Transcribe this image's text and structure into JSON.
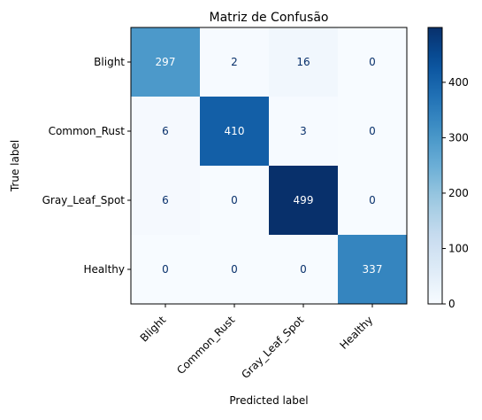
{
  "chart_data": {
    "type": "heatmap",
    "title": "Matriz de Confusão",
    "xlabel": "Predicted label",
    "ylabel": "True label",
    "x_categories": [
      "Blight",
      "Common_Rust",
      "Gray_Leaf_Spot",
      "Healthy"
    ],
    "y_categories": [
      "Blight",
      "Common_Rust",
      "Gray_Leaf_Spot",
      "Healthy"
    ],
    "values": [
      [
        297,
        2,
        16,
        0
      ],
      [
        6,
        410,
        3,
        0
      ],
      [
        6,
        0,
        499,
        0
      ],
      [
        0,
        0,
        0,
        337
      ]
    ],
    "colormap": "Blues",
    "vmin": 0,
    "vmax": 499,
    "colorbar_ticks": [
      0,
      100,
      200,
      300,
      400
    ],
    "grid": false
  }
}
